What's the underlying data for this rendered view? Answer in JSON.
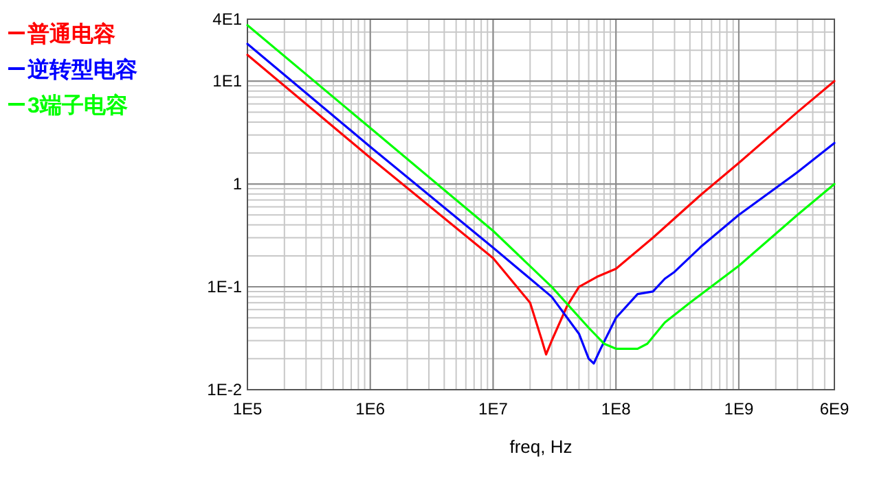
{
  "chart_data": {
    "type": "line",
    "xlabel": "freq, Hz",
    "log": "xy",
    "grid": true,
    "legend": "top left",
    "xlim": [
      100000.0,
      6000000000.0
    ],
    "ylim": [
      0.01,
      40
    ],
    "xticks": [
      {
        "value": 100000.0,
        "label": "1E5"
      },
      {
        "value": 1000000.0,
        "label": "1E6"
      },
      {
        "value": 10000000.0,
        "label": "1E7"
      },
      {
        "value": 100000000.0,
        "label": "1E8"
      },
      {
        "value": 1000000000.0,
        "label": "1E9"
      },
      {
        "value": 6000000000.0,
        "label": "6E9"
      }
    ],
    "yticks": [
      {
        "value": 40,
        "label": "4E1"
      },
      {
        "value": 10,
        "label": "1E1"
      },
      1,
      {
        "value": 0.1,
        "label": "1E-1"
      },
      {
        "value": 0.01,
        "label": "1E-2"
      }
    ],
    "series": [
      {
        "name": "普通电容",
        "color": "#ff0000",
        "x": [
          100000.0,
          1000000.0,
          10000000.0,
          20000000.0,
          25000000.0,
          27000000.0,
          30000000.0,
          40000000.0,
          50000000.0,
          70000000.0,
          100000000.0,
          200000000.0,
          500000000.0,
          1000000000.0,
          3000000000.0,
          6000000000.0
        ],
        "values": [
          18,
          1.8,
          0.19,
          0.07,
          0.03,
          0.022,
          0.03,
          0.065,
          0.1,
          0.125,
          0.15,
          0.3,
          0.8,
          1.6,
          5,
          10
        ]
      },
      {
        "name": "逆转型电容",
        "color": "#0000ff",
        "x": [
          100000.0,
          1000000.0,
          10000000.0,
          30000000.0,
          50000000.0,
          60000000.0,
          66000000.0,
          75000000.0,
          100000000.0,
          150000000.0,
          200000000.0,
          250000000.0,
          300000000.0,
          500000000.0,
          1000000000.0,
          3000000000.0,
          6000000000.0
        ],
        "values": [
          23,
          2.3,
          0.24,
          0.08,
          0.035,
          0.02,
          0.018,
          0.025,
          0.05,
          0.085,
          0.09,
          0.12,
          0.14,
          0.25,
          0.5,
          1.3,
          2.5
        ]
      },
      {
        "name": "3端子电容",
        "color": "#00ff00",
        "x": [
          100000.0,
          1000000.0,
          10000000.0,
          30000000.0,
          60000000.0,
          80000000.0,
          100000000.0,
          150000000.0,
          180000000.0,
          250000000.0,
          400000000.0,
          1000000000.0,
          3000000000.0,
          6000000000.0
        ],
        "values": [
          35,
          3.5,
          0.35,
          0.1,
          0.04,
          0.028,
          0.025,
          0.025,
          0.028,
          0.045,
          0.07,
          0.16,
          0.5,
          1.0
        ]
      }
    ]
  }
}
